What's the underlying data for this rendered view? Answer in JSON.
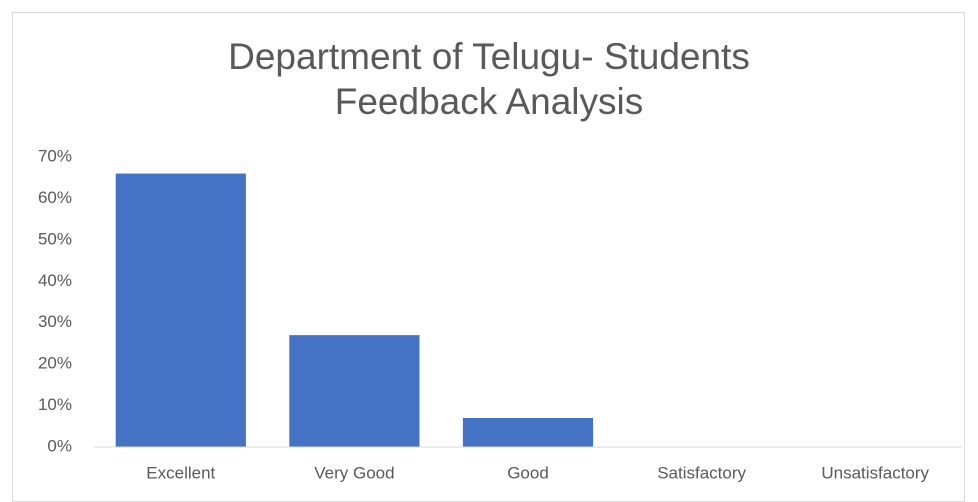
{
  "chart_data": {
    "type": "bar",
    "title": "Department of Telugu- Students Feedback Analysis",
    "categories": [
      "Excellent",
      "Very Good",
      "Good",
      "Satisfactory",
      "Unsatisfactory"
    ],
    "values": [
      66,
      27,
      7,
      0,
      0
    ],
    "color": "#4472c4",
    "ylim": [
      0,
      70
    ],
    "yticks": [
      {
        "value": 0,
        "label": "0%"
      },
      {
        "value": 10,
        "label": "10%"
      },
      {
        "value": 20,
        "label": "20%"
      },
      {
        "value": 30,
        "label": "30%"
      },
      {
        "value": 40,
        "label": "40%"
      },
      {
        "value": 50,
        "label": "50%"
      },
      {
        "value": 60,
        "label": "60%"
      },
      {
        "value": 70,
        "label": "70%"
      }
    ],
    "grid": false
  }
}
